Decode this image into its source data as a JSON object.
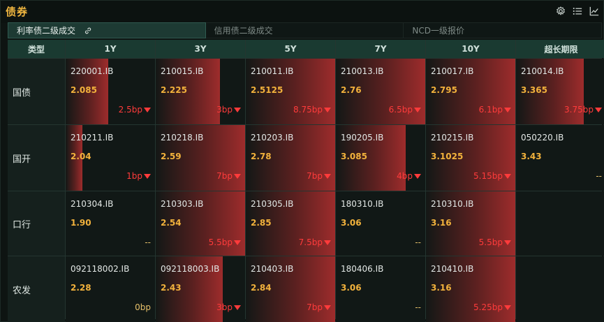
{
  "title": "债券",
  "icons": {
    "settings": "gear-icon",
    "list": "list-icon",
    "chart": "line-chart-icon"
  },
  "tabs": [
    {
      "label": "利率债二级成交",
      "active": true
    },
    {
      "label": "信用债二级成交",
      "active": false
    },
    {
      "label": "NCD一级报价",
      "active": false
    }
  ],
  "table": {
    "type_header": "类型",
    "columns": [
      "1Y",
      "3Y",
      "5Y",
      "7Y",
      "10Y",
      "超长期限"
    ],
    "rows": [
      {
        "label": "国债",
        "cells": [
          {
            "code": "220001.IB",
            "yield": "2.085",
            "change": "2.5bp",
            "dir": "down",
            "heat": 0.48
          },
          {
            "code": "210015.IB",
            "yield": "2.225",
            "change": "3bp",
            "dir": "down",
            "heat": 0.72
          },
          {
            "code": "210011.IB",
            "yield": "2.5125",
            "change": "8.75bp",
            "dir": "down",
            "heat": 1.0
          },
          {
            "code": "210013.IB",
            "yield": "2.76",
            "change": "6.5bp",
            "dir": "down",
            "heat": 1.0
          },
          {
            "code": "210017.IB",
            "yield": "2.795",
            "change": "6.1bp",
            "dir": "down",
            "heat": 1.0
          },
          {
            "code": "210014.IB",
            "yield": "3.365",
            "change": "3.75bp",
            "dir": "down",
            "heat": 0.75
          }
        ]
      },
      {
        "label": "国开",
        "cells": [
          {
            "code": "210211.IB",
            "yield": "2.04",
            "change": "1bp",
            "dir": "down",
            "heat": 0.19
          },
          {
            "code": "210218.IB",
            "yield": "2.59",
            "change": "7bp",
            "dir": "down",
            "heat": 1.0
          },
          {
            "code": "210203.IB",
            "yield": "2.78",
            "change": "7bp",
            "dir": "down",
            "heat": 1.0
          },
          {
            "code": "190205.IB",
            "yield": "3.085",
            "change": "4bp",
            "dir": "down",
            "heat": 0.78
          },
          {
            "code": "210215.IB",
            "yield": "3.1025",
            "change": "5.15bp",
            "dir": "down",
            "heat": 1.0
          },
          {
            "code": "050220.IB",
            "yield": "3.43",
            "change": "--",
            "dir": "flat",
            "heat": 0
          }
        ]
      },
      {
        "label": "口行",
        "cells": [
          {
            "code": "210304.IB",
            "yield": "1.90",
            "change": "--",
            "dir": "flat",
            "heat": 0
          },
          {
            "code": "210303.IB",
            "yield": "2.54",
            "change": "5.5bp",
            "dir": "down",
            "heat": 1.0
          },
          {
            "code": "210305.IB",
            "yield": "2.85",
            "change": "7.5bp",
            "dir": "down",
            "heat": 1.0
          },
          {
            "code": "180310.IB",
            "yield": "3.06",
            "change": "--",
            "dir": "flat",
            "heat": 0
          },
          {
            "code": "210310.IB",
            "yield": "3.16",
            "change": "5.5bp",
            "dir": "down",
            "heat": 1.0
          },
          null
        ]
      },
      {
        "label": "农发",
        "cells": [
          {
            "code": "092118002.IB",
            "yield": "2.28",
            "change": "0bp",
            "dir": "flat",
            "heat": 0
          },
          {
            "code": "092118003.IB",
            "yield": "2.43",
            "change": "3bp",
            "dir": "down",
            "heat": 0.75
          },
          {
            "code": "210403.IB",
            "yield": "2.84",
            "change": "7bp",
            "dir": "down",
            "heat": 1.0
          },
          {
            "code": "180406.IB",
            "yield": "3.06",
            "change": "--",
            "dir": "flat",
            "heat": 0
          },
          {
            "code": "210410.IB",
            "yield": "3.16",
            "change": "5.25bp",
            "dir": "down",
            "heat": 1.0
          },
          null
        ]
      }
    ]
  },
  "colors": {
    "accent": "#f0b640",
    "down": "#ff3b3b",
    "yield": "#f2b23c",
    "header_bg": "#1a3a31"
  }
}
